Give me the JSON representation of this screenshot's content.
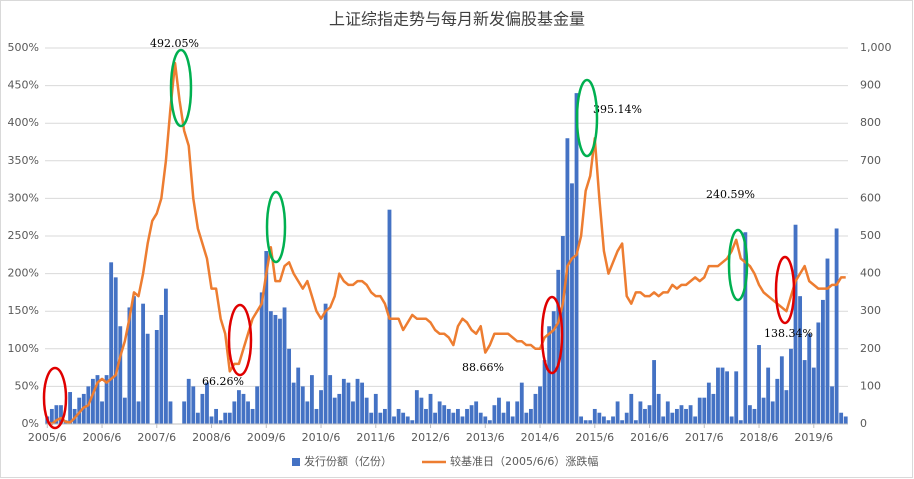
{
  "chart_data": {
    "type": "bar-line",
    "title": "上证综指走势与每月新发偏股基金量",
    "categories": [
      "2005/6",
      null,
      null,
      null,
      null,
      null,
      null,
      null,
      null,
      null,
      null,
      null,
      "2006/6",
      null,
      null,
      null,
      null,
      null,
      null,
      null,
      null,
      null,
      null,
      null,
      "2007/6",
      null,
      null,
      null,
      null,
      null,
      null,
      null,
      null,
      null,
      null,
      null,
      "2008/6",
      null,
      null,
      null,
      null,
      null,
      null,
      null,
      null,
      null,
      null,
      null,
      "2009/6",
      null,
      null,
      null,
      null,
      null,
      null,
      null,
      null,
      null,
      null,
      null,
      "2010/6",
      null,
      null,
      null,
      null,
      null,
      null,
      null,
      null,
      null,
      null,
      null,
      "2011/6",
      null,
      null,
      null,
      null,
      null,
      null,
      null,
      null,
      null,
      null,
      null,
      "2012/6",
      null,
      null,
      null,
      null,
      null,
      null,
      null,
      null,
      null,
      null,
      null,
      "2013/6",
      null,
      null,
      null,
      null,
      null,
      null,
      null,
      null,
      null,
      null,
      null,
      "2014/6",
      null,
      null,
      null,
      null,
      null,
      null,
      null,
      null,
      null,
      null,
      null,
      "2015/6",
      null,
      null,
      null,
      null,
      null,
      null,
      null,
      null,
      null,
      null,
      null,
      "2016/6",
      null,
      null,
      null,
      null,
      null,
      null,
      null,
      null,
      null,
      null,
      null,
      "2017/6",
      null,
      null,
      null,
      null,
      null,
      null,
      null,
      null,
      null,
      null,
      null,
      "2018/6",
      null,
      null,
      null,
      null,
      null,
      null,
      null,
      null,
      null,
      null,
      null,
      "2019/6",
      null,
      null,
      null,
      null,
      null,
      null,
      null
    ],
    "series": [
      {
        "name": "发行份额（亿份）",
        "type": "bar",
        "axis": "y2",
        "color": "#4472c4",
        "values": [
          20,
          40,
          50,
          50,
          10,
          85,
          40,
          70,
          80,
          100,
          120,
          130,
          60,
          130,
          430,
          390,
          260,
          70,
          310,
          340,
          60,
          320,
          240,
          0,
          250,
          290,
          360,
          60,
          0,
          0,
          60,
          120,
          100,
          30,
          80,
          110,
          20,
          40,
          10,
          30,
          30,
          60,
          90,
          80,
          60,
          40,
          100,
          350,
          460,
          300,
          290,
          280,
          310,
          200,
          110,
          150,
          100,
          60,
          130,
          40,
          90,
          320,
          130,
          70,
          80,
          120,
          110,
          60,
          120,
          110,
          70,
          30,
          80,
          30,
          40,
          570,
          20,
          40,
          30,
          20,
          10,
          90,
          70,
          40,
          80,
          30,
          60,
          50,
          40,
          30,
          40,
          20,
          40,
          50,
          60,
          30,
          20,
          10,
          50,
          70,
          30,
          60,
          20,
          60,
          110,
          30,
          40,
          80,
          100,
          170,
          260,
          300,
          410,
          500,
          760,
          640,
          880,
          20,
          10,
          10,
          40,
          30,
          20,
          10,
          20,
          60,
          10,
          30,
          80,
          10,
          60,
          40,
          50,
          170,
          80,
          20,
          60,
          30,
          40,
          50,
          40,
          50,
          20,
          70,
          70,
          110,
          80,
          150,
          150,
          140,
          20,
          140,
          10,
          510,
          50,
          40,
          210,
          70,
          150,
          60,
          120,
          180,
          90,
          200,
          530,
          340,
          170,
          240,
          150,
          270,
          330,
          440,
          100,
          520,
          30,
          20
        ]
      },
      {
        "name": "较基准日（2005/6/6）涨跌幅",
        "type": "line",
        "axis": "y",
        "color": "#ed7d31",
        "values": [
          3,
          0,
          5,
          8,
          3,
          2,
          8,
          15,
          22,
          25,
          40,
          55,
          60,
          55,
          60,
          65,
          90,
          110,
          140,
          175,
          170,
          200,
          240,
          270,
          280,
          300,
          350,
          420,
          480,
          430,
          390,
          370,
          300,
          260,
          240,
          220,
          180,
          180,
          140,
          120,
          70,
          80,
          80,
          100,
          120,
          140,
          150,
          160,
          200,
          235,
          190,
          190,
          210,
          215,
          200,
          190,
          180,
          190,
          170,
          150,
          140,
          150,
          155,
          170,
          200,
          190,
          185,
          185,
          190,
          190,
          185,
          175,
          170,
          170,
          160,
          140,
          140,
          140,
          125,
          135,
          145,
          140,
          140,
          140,
          135,
          125,
          120,
          120,
          115,
          105,
          130,
          140,
          135,
          125,
          120,
          130,
          95,
          105,
          120,
          120,
          120,
          120,
          115,
          110,
          110,
          105,
          105,
          100,
          100,
          115,
          120,
          125,
          135,
          160,
          210,
          220,
          225,
          250,
          310,
          330,
          380,
          300,
          230,
          200,
          215,
          230,
          240,
          170,
          160,
          175,
          175,
          170,
          170,
          175,
          170,
          175,
          175,
          185,
          180,
          185,
          185,
          190,
          195,
          190,
          195,
          210,
          210,
          210,
          215,
          220,
          230,
          245,
          220,
          215,
          210,
          200,
          185,
          175,
          170,
          165,
          160,
          155,
          150,
          170,
          190,
          200,
          210,
          190,
          185,
          180,
          180,
          180,
          185,
          185,
          195,
          195
        ]
      }
    ],
    "ylim": [
      0,
      500
    ],
    "yticks": [
      {
        "value": 0,
        "label": "0%"
      },
      {
        "value": 50,
        "label": "50%"
      },
      {
        "value": 100,
        "label": "100%"
      },
      {
        "value": 150,
        "label": "150%"
      },
      {
        "value": 200,
        "label": "200%"
      },
      {
        "value": 250,
        "label": "250%"
      },
      {
        "value": 300,
        "label": "300%"
      },
      {
        "value": 350,
        "label": "350%"
      },
      {
        "value": 400,
        "label": "400%"
      },
      {
        "value": 450,
        "label": "450%"
      },
      {
        "value": 500,
        "label": "500%"
      }
    ],
    "y2lim": [
      0,
      1000
    ],
    "y2ticks": [
      0,
      100,
      200,
      300,
      400,
      500,
      600,
      700,
      800,
      900,
      {
        "value": 1000,
        "label": "1,000"
      }
    ],
    "grid": true,
    "legend": "bottom",
    "annotations": [
      {
        "value": 492.05,
        "label": "492.05%"
      },
      {
        "value": 395.14,
        "label": "395.14%"
      },
      {
        "value": 240.59,
        "label": "240.59%"
      },
      {
        "value": 138.34,
        "label": "138.34%"
      },
      {
        "value": 88.66,
        "label": "88.66%"
      },
      {
        "value": 66.26,
        "label": "66.26%"
      }
    ]
  }
}
